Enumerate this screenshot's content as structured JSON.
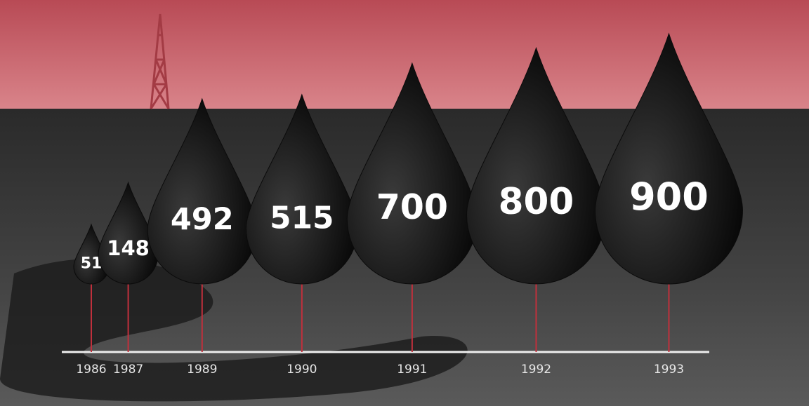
{
  "chart_data": {
    "type": "drop",
    "categories": [
      "1986",
      "1987",
      "1989",
      "1990",
      "1991",
      "1992",
      "1993"
    ],
    "values": [
      51,
      148,
      492,
      515,
      700,
      800,
      900
    ],
    "color": "#0b0b0b"
  }
}
